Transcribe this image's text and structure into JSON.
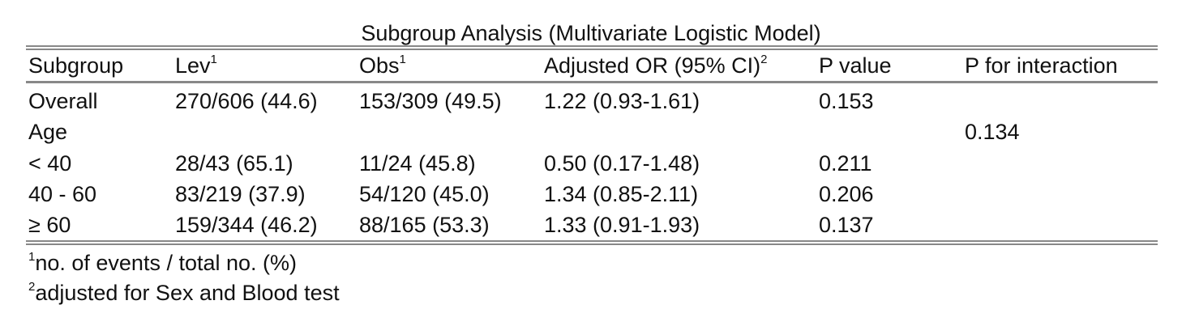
{
  "table": {
    "title": "Subgroup Analysis (Multivariate Logistic Model)",
    "headers": [
      {
        "text": "Subgroup",
        "sup": ""
      },
      {
        "text": "Lev",
        "sup": "1"
      },
      {
        "text": "Obs",
        "sup": "1"
      },
      {
        "text": "Adjusted OR (95% CI)",
        "sup": "2"
      },
      {
        "text": "P value",
        "sup": ""
      },
      {
        "text": "P for interaction",
        "sup": ""
      }
    ],
    "rows": [
      [
        "Overall",
        "270/606 (44.6)",
        "153/309 (49.5)",
        "1.22 (0.93-1.61)",
        "0.153",
        ""
      ],
      [
        "Age",
        "",
        "",
        "",
        "",
        "0.134"
      ],
      [
        "< 40",
        "28/43 (65.1)",
        "11/24 (45.8)",
        "0.50 (0.17-1.48)",
        "0.211",
        ""
      ],
      [
        "40 - 60",
        "83/219 (37.9)",
        "54/120 (45.0)",
        "1.34 (0.85-2.11)",
        "0.206",
        ""
      ],
      [
        "≥ 60",
        "159/344 (46.2)",
        "88/165 (53.3)",
        "1.33 (0.91-1.93)",
        "0.137",
        ""
      ]
    ],
    "footnotes": [
      {
        "sup": "1",
        "text": "no. of events / total no. (%)"
      },
      {
        "sup": "2",
        "text": "adjusted for Sex and Blood test"
      }
    ]
  }
}
